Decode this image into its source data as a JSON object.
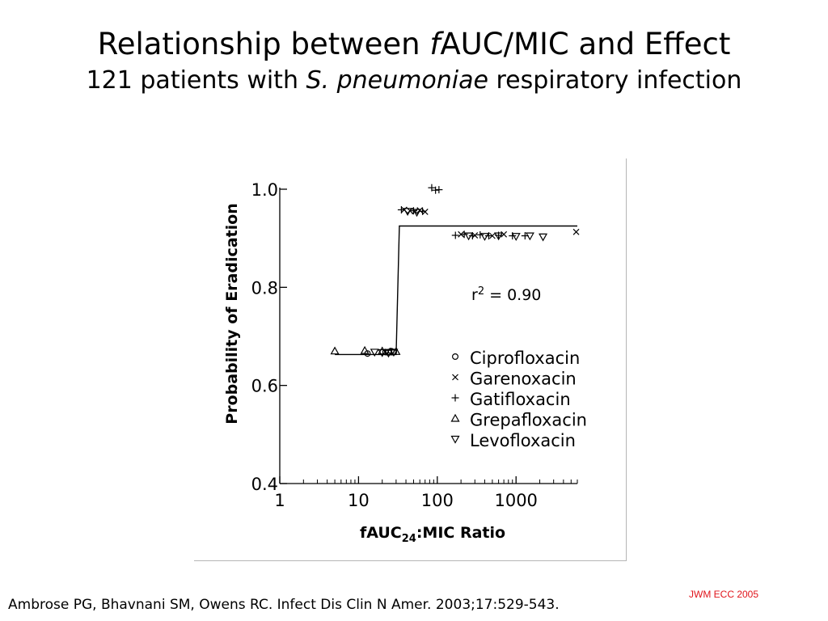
{
  "slide": {
    "title_pre": "Relationship between ",
    "title_italic": "f",
    "title_post": "AUC/MIC and Effect",
    "subtitle_pre": "121 patients with ",
    "subtitle_italic": "S. pneumoniae",
    "subtitle_post": " respiratory infection",
    "citation": "Ambrose PG, Bhavnani SM, Owens RC.  Infect Dis Clin N Amer. 2003;17:529-543.",
    "credit": "JWM ECC 2005",
    "credit_color": "#e0141b"
  },
  "chart_data": {
    "type": "scatter",
    "xscale": "log",
    "xlim": [
      1,
      6000
    ],
    "ylim": [
      0.4,
      1.0
    ],
    "xticks": [
      1,
      10,
      100,
      1000
    ],
    "xtick_labels": [
      "1",
      "10",
      "100",
      "1000"
    ],
    "yticks": [
      0.4,
      0.6,
      0.8,
      1.0
    ],
    "ytick_labels": [
      "0.4",
      "0.6",
      "0.8",
      "1.0"
    ],
    "xlabel_pre": "fAUC",
    "xlabel_sub": "24",
    "xlabel_post": ":MIC Ratio",
    "ylabel": "Probability of Eradication",
    "annotation": {
      "base": "r",
      "sup": "2",
      "rest": " = 0.90",
      "x": 200,
      "y": 0.84
    },
    "legend_position": "right-middle",
    "fit_line": {
      "x": [
        5,
        12,
        30,
        33,
        6000
      ],
      "y": [
        0.663,
        0.663,
        0.663,
        0.925,
        0.925
      ]
    },
    "series": [
      {
        "name": "Ciprofloxacin",
        "marker": "circle",
        "x": [
          13,
          22,
          24,
          26,
          28
        ],
        "y": [
          0.665,
          0.668,
          0.668,
          0.67,
          0.668
        ]
      },
      {
        "name": "Garenoxacin",
        "marker": "x",
        "x": [
          38,
          45,
          52,
          60,
          70,
          200,
          300,
          500,
          700,
          5800
        ],
        "y": [
          0.958,
          0.956,
          0.955,
          0.957,
          0.954,
          0.908,
          0.906,
          0.905,
          0.908,
          0.913
        ]
      },
      {
        "name": "Gatifloxacin",
        "marker": "plus",
        "x": [
          85,
          95,
          105,
          35,
          50,
          65,
          170,
          220,
          280,
          350,
          450,
          600,
          900,
          1300
        ],
        "y": [
          1.003,
          0.998,
          0.999,
          0.958,
          0.956,
          0.955,
          0.906,
          0.908,
          0.905,
          0.907,
          0.905,
          0.906,
          0.905,
          0.905
        ]
      },
      {
        "name": "Grepafloxacin",
        "marker": "triangle-up",
        "x": [
          5,
          12,
          20,
          25,
          30
        ],
        "y": [
          0.67,
          0.671,
          0.67,
          0.668,
          0.669
        ]
      },
      {
        "name": "Levofloxacin",
        "marker": "triangle-down",
        "x": [
          16,
          20,
          24,
          28,
          42,
          55,
          250,
          400,
          600,
          1000,
          1500,
          2200
        ],
        "y": [
          0.668,
          0.667,
          0.666,
          0.668,
          0.955,
          0.953,
          0.905,
          0.904,
          0.905,
          0.904,
          0.905,
          0.903
        ]
      }
    ]
  }
}
